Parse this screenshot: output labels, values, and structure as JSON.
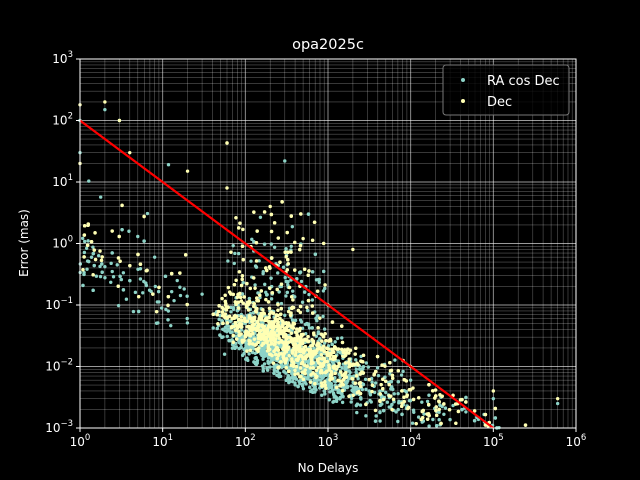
{
  "chart_data": {
    "type": "scatter",
    "title": "opa2025c",
    "xlabel": "No Delays",
    "ylabel": "Error (mas)",
    "xscale": "log",
    "yscale": "log",
    "xlim": [
      1,
      1000000
    ],
    "ylim": [
      0.001,
      1000
    ],
    "x_ticks": [
      {
        "base": "10",
        "exp": "0"
      },
      {
        "base": "10",
        "exp": "1"
      },
      {
        "base": "10",
        "exp": "2"
      },
      {
        "base": "10",
        "exp": "3"
      },
      {
        "base": "10",
        "exp": "4"
      },
      {
        "base": "10",
        "exp": "5"
      },
      {
        "base": "10",
        "exp": "6"
      }
    ],
    "y_ticks": [
      {
        "base": "10",
        "exp": "−3"
      },
      {
        "base": "10",
        "exp": "−2"
      },
      {
        "base": "10",
        "exp": "−1"
      },
      {
        "base": "10",
        "exp": "0"
      },
      {
        "base": "10",
        "exp": "1"
      },
      {
        "base": "10",
        "exp": "2"
      },
      {
        "base": "10",
        "exp": "3"
      }
    ],
    "grid": "major and minor",
    "legend_position": "top-right",
    "series": [
      {
        "name": "RA cos Dec",
        "color": "#8dd3c7",
        "marker": "point",
        "trend": {
          "a": 0.5,
          "b": -0.6,
          "upper_spread": 2.2,
          "lower_spread": 0.45
        },
        "points": [
          [
            1,
            100
          ],
          [
            1,
            30
          ],
          [
            2,
            0.42
          ],
          [
            2,
            150
          ],
          [
            3,
            100
          ],
          [
            5,
            1.3
          ],
          [
            8,
            0.6
          ],
          [
            15,
            0.25
          ],
          [
            30,
            0.15
          ],
          [
            300,
            22
          ],
          [
            100,
            0.05
          ],
          [
            1000,
            0.02
          ],
          [
            10000,
            0.006
          ],
          [
            100000,
            0.003
          ],
          [
            600000,
            0.0025
          ]
        ]
      },
      {
        "name": "Dec",
        "color": "#ffffb3",
        "marker": "point",
        "trend": {
          "a": 0.9,
          "b": -0.62,
          "upper_spread": 2.6,
          "lower_spread": 0.5
        },
        "points": [
          [
            1,
            180
          ],
          [
            1,
            20
          ],
          [
            2,
            200
          ],
          [
            3,
            100
          ],
          [
            4,
            30
          ],
          [
            20,
            15
          ],
          [
            60,
            8
          ],
          [
            200,
            4
          ],
          [
            2000,
            0.8
          ],
          [
            500,
            1.2
          ],
          [
            1000,
            0.1
          ],
          [
            10000,
            0.01
          ],
          [
            100000,
            0.004
          ],
          [
            600000,
            0.003
          ]
        ]
      }
    ],
    "reference_line": {
      "color": "#ff0000",
      "x": [
        1,
        100000
      ],
      "y": [
        100,
        0.001
      ]
    }
  }
}
